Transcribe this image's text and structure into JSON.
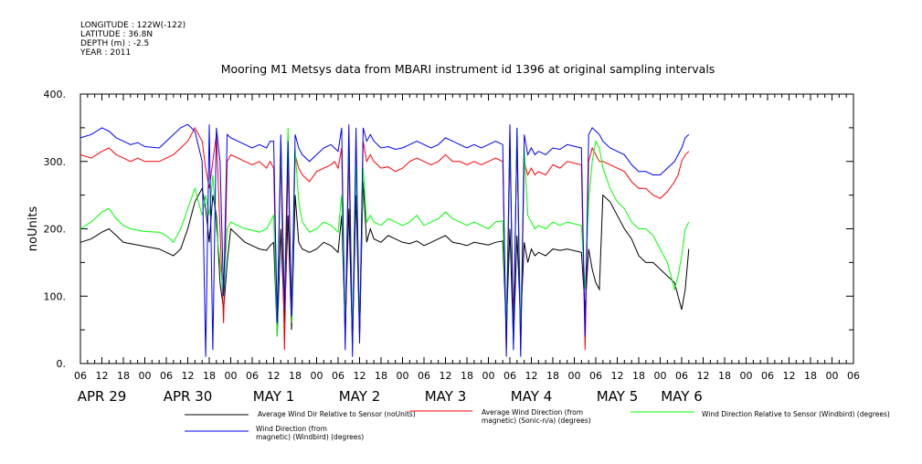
{
  "header": {
    "meta_lines": [
      "LONGITUDE : 122W(-122)",
      "LATITUDE : 36.8N",
      "DEPTH (m) : -2.5",
      "YEAR : 2011"
    ],
    "title": "Mooring M1 Metsys data from MBARI instrument id 1396 at original sampling intervals"
  },
  "legend": {
    "items": [
      {
        "lines": [
          "Average Wind Dir Relative to Sensor (noUnits)"
        ],
        "color": "#000000"
      },
      {
        "lines": [
          "Average Wind Direction (from",
          "magnetic) (Sonic-n/a) (degrees)"
        ],
        "color": "#ff0000"
      },
      {
        "lines": [
          "Wind Direction Relative to Sensor (Windbird) (degrees)"
        ],
        "color": "#00ff00"
      },
      {
        "lines": [
          "Wind Direction (from",
          "magnetic) (Windbird) (degrees)"
        ],
        "color": "#0000ff"
      }
    ]
  },
  "chart_data": {
    "type": "line",
    "title": "Mooring M1 Metsys data from MBARI instrument id 1396 at original sampling intervals",
    "xlabel": "",
    "ylabel": "noUnits",
    "ylim": [
      0,
      400
    ],
    "xlim_hours": [
      0,
      210
    ],
    "y_ticks": [
      0,
      100,
      200,
      300,
      400
    ],
    "y_tick_labels": [
      "0.",
      "100.",
      "200.",
      "300.",
      "400."
    ],
    "x_tick_labels": [
      "06",
      "12",
      "18",
      "00",
      "06",
      "12",
      "18",
      "00",
      "06",
      "12",
      "18",
      "00",
      "06",
      "12",
      "18",
      "00",
      "06",
      "12",
      "18",
      "00",
      "06",
      "12",
      "18",
      "00",
      "06",
      "12",
      "18",
      "00",
      "06",
      "12",
      "18",
      "00",
      "06",
      "12",
      "18",
      "00",
      "06"
    ],
    "x_tick_hours": [
      0,
      6,
      12,
      18,
      24,
      30,
      36,
      42,
      48,
      54,
      60,
      66,
      72,
      78,
      84,
      90,
      96,
      102,
      108,
      114,
      120,
      126,
      132,
      138,
      144,
      150,
      156,
      162,
      168,
      174,
      180,
      186,
      192,
      198,
      204,
      210,
      216
    ],
    "date_labels": [
      {
        "label": "APR 29",
        "hour": 6
      },
      {
        "label": "APR 30",
        "hour": 30
      },
      {
        "label": "MAY  1",
        "hour": 54
      },
      {
        "label": "MAY  2",
        "hour": 78
      },
      {
        "label": "MAY  3",
        "hour": 102
      },
      {
        "label": "MAY  4",
        "hour": 126
      },
      {
        "label": "MAY  5",
        "hour": 150
      },
      {
        "label": "MAY  6",
        "hour": 168
      }
    ],
    "series": [
      {
        "name": "Average Wind Dir Relative to Sensor (noUnits)",
        "color": "#000000",
        "x": [
          0,
          3,
          6,
          8,
          10,
          12,
          14,
          16,
          18,
          22,
          24,
          26,
          28,
          30,
          32,
          34,
          35,
          36,
          37,
          38,
          39,
          40,
          41,
          42,
          44,
          46,
          48,
          50,
          52,
          53,
          54,
          55,
          56,
          57,
          58,
          59,
          60,
          61,
          62,
          64,
          66,
          68,
          70,
          71,
          72,
          73,
          74,
          75,
          76,
          77,
          78,
          79,
          80,
          81,
          82,
          84,
          86,
          88,
          90,
          92,
          94,
          96,
          98,
          100,
          102,
          104,
          106,
          108,
          110,
          112,
          114,
          116,
          118,
          119,
          120,
          121,
          122,
          123,
          124,
          125,
          126,
          127,
          128,
          130,
          132,
          134,
          136,
          140,
          141,
          142,
          143,
          144,
          145,
          146,
          148,
          150,
          152,
          154,
          156,
          158,
          160,
          162,
          164,
          166,
          167,
          168,
          169,
          170
        ],
        "y": [
          180,
          185,
          195,
          200,
          190,
          180,
          178,
          176,
          174,
          170,
          165,
          160,
          170,
          200,
          240,
          260,
          230,
          180,
          250,
          220,
          120,
          80,
          150,
          200,
          190,
          180,
          175,
          170,
          168,
          175,
          180,
          40,
          200,
          60,
          220,
          50,
          250,
          180,
          170,
          165,
          170,
          180,
          175,
          170,
          165,
          220,
          50,
          230,
          30,
          250,
          40,
          270,
          180,
          200,
          185,
          180,
          190,
          185,
          180,
          178,
          182,
          175,
          180,
          185,
          190,
          180,
          178,
          175,
          180,
          178,
          176,
          180,
          182,
          50,
          200,
          30,
          190,
          60,
          180,
          150,
          170,
          160,
          165,
          160,
          170,
          168,
          170,
          165,
          80,
          170,
          140,
          120,
          110,
          250,
          240,
          220,
          200,
          185,
          160,
          150,
          150,
          140,
          130,
          120,
          100,
          80,
          110,
          170
        ]
      },
      {
        "name": "Average Wind Direction (from magnetic) (Sonic-n/a) (degrees)",
        "color": "#ff0000",
        "x": [
          0,
          3,
          6,
          8,
          10,
          12,
          14,
          16,
          18,
          22,
          24,
          26,
          28,
          30,
          32,
          34,
          35,
          36,
          37,
          38,
          39,
          40,
          41,
          42,
          44,
          46,
          48,
          50,
          52,
          53,
          54,
          55,
          56,
          57,
          58,
          59,
          60,
          61,
          62,
          64,
          66,
          68,
          70,
          71,
          72,
          73,
          74,
          75,
          76,
          77,
          78,
          79,
          80,
          81,
          82,
          84,
          86,
          88,
          90,
          92,
          94,
          96,
          98,
          100,
          102,
          104,
          106,
          108,
          110,
          112,
          114,
          116,
          118,
          119,
          120,
          121,
          122,
          123,
          124,
          125,
          126,
          127,
          128,
          130,
          132,
          134,
          136,
          140,
          141,
          142,
          143,
          144,
          145,
          146,
          148,
          150,
          152,
          154,
          156,
          158,
          160,
          162,
          164,
          166,
          167,
          168,
          169,
          170
        ],
        "y": [
          310,
          305,
          315,
          320,
          310,
          305,
          300,
          305,
          300,
          300,
          305,
          310,
          320,
          330,
          350,
          330,
          290,
          260,
          300,
          340,
          200,
          60,
          300,
          310,
          305,
          300,
          295,
          300,
          290,
          300,
          290,
          60,
          310,
          20,
          300,
          60,
          310,
          290,
          280,
          270,
          285,
          290,
          295,
          300,
          290,
          320,
          30,
          310,
          30,
          320,
          40,
          330,
          300,
          310,
          300,
          290,
          292,
          285,
          290,
          300,
          305,
          300,
          295,
          300,
          310,
          300,
          300,
          295,
          300,
          295,
          300,
          305,
          300,
          20,
          320,
          60,
          330,
          20,
          300,
          280,
          290,
          280,
          285,
          280,
          295,
          290,
          300,
          295,
          20,
          300,
          320,
          310,
          300,
          300,
          295,
          290,
          285,
          270,
          260,
          260,
          250,
          245,
          255,
          270,
          280,
          300,
          310,
          315
        ]
      },
      {
        "name": "Wind Direction Relative to Sensor (Windbird) (degrees)",
        "color": "#00ff00",
        "x": [
          0,
          3,
          6,
          8,
          10,
          12,
          14,
          16,
          18,
          22,
          24,
          26,
          28,
          30,
          32,
          34,
          35,
          36,
          37,
          38,
          39,
          40,
          41,
          42,
          44,
          46,
          48,
          50,
          52,
          53,
          54,
          55,
          56,
          57,
          58,
          59,
          60,
          61,
          62,
          64,
          66,
          68,
          70,
          71,
          72,
          73,
          74,
          75,
          76,
          77,
          78,
          79,
          80,
          81,
          82,
          84,
          86,
          88,
          90,
          92,
          94,
          96,
          98,
          100,
          102,
          104,
          106,
          108,
          110,
          112,
          114,
          116,
          118,
          119,
          120,
          121,
          122,
          123,
          124,
          125,
          126,
          127,
          128,
          130,
          132,
          134,
          136,
          140,
          141,
          142,
          143,
          144,
          145,
          146,
          148,
          150,
          152,
          154,
          156,
          158,
          160,
          162,
          164,
          166,
          167,
          168,
          169,
          170
        ],
        "y": [
          200,
          210,
          225,
          230,
          215,
          205,
          200,
          198,
          196,
          195,
          190,
          180,
          200,
          230,
          260,
          220,
          250,
          220,
          280,
          200,
          150,
          100,
          200,
          210,
          205,
          200,
          198,
          195,
          200,
          210,
          220,
          40,
          330,
          80,
          350,
          60,
          320,
          240,
          210,
          195,
          200,
          210,
          205,
          200,
          195,
          250,
          60,
          340,
          40,
          300,
          60,
          290,
          210,
          220,
          210,
          205,
          215,
          210,
          205,
          210,
          220,
          205,
          210,
          215,
          225,
          215,
          210,
          205,
          210,
          205,
          200,
          210,
          212,
          60,
          340,
          20,
          350,
          40,
          320,
          220,
          210,
          200,
          205,
          200,
          210,
          205,
          210,
          205,
          110,
          240,
          300,
          330,
          320,
          290,
          260,
          240,
          230,
          210,
          200,
          200,
          190,
          170,
          150,
          110,
          130,
          160,
          200,
          210
        ]
      },
      {
        "name": "Wind Direction (from magnetic) (Windbird) (degrees)",
        "color": "#0000ff",
        "x": [
          0,
          3,
          6,
          8,
          10,
          12,
          14,
          16,
          18,
          22,
          24,
          26,
          28,
          30,
          32,
          34,
          35,
          36,
          37,
          38,
          39,
          40,
          41,
          42,
          44,
          46,
          48,
          50,
          52,
          53,
          54,
          55,
          56,
          57,
          58,
          59,
          60,
          61,
          62,
          64,
          66,
          68,
          70,
          71,
          72,
          73,
          74,
          75,
          76,
          77,
          78,
          79,
          80,
          81,
          82,
          84,
          86,
          88,
          90,
          92,
          94,
          96,
          98,
          100,
          102,
          104,
          106,
          108,
          110,
          112,
          114,
          116,
          118,
          119,
          120,
          121,
          122,
          123,
          124,
          125,
          126,
          127,
          128,
          130,
          132,
          134,
          136,
          140,
          141,
          142,
          143,
          144,
          145,
          146,
          148,
          150,
          152,
          154,
          156,
          158,
          160,
          162,
          164,
          166,
          167,
          168,
          169,
          170
        ],
        "y": [
          335,
          340,
          350,
          345,
          335,
          330,
          325,
          328,
          322,
          320,
          330,
          340,
          350,
          355,
          345,
          300,
          10,
          355,
          20,
          350,
          300,
          100,
          340,
          335,
          330,
          325,
          320,
          325,
          320,
          330,
          330,
          60,
          340,
          80,
          330,
          70,
          340,
          320,
          310,
          300,
          310,
          320,
          325,
          320,
          315,
          350,
          20,
          355,
          10,
          350,
          30,
          350,
          330,
          340,
          330,
          320,
          322,
          318,
          320,
          325,
          330,
          325,
          320,
          325,
          335,
          330,
          325,
          320,
          325,
          320,
          325,
          330,
          325,
          10,
          355,
          20,
          350,
          10,
          340,
          310,
          320,
          310,
          315,
          310,
          320,
          318,
          325,
          320,
          40,
          340,
          350,
          345,
          340,
          330,
          320,
          315,
          310,
          295,
          285,
          285,
          280,
          280,
          290,
          300,
          310,
          320,
          335,
          340
        ]
      }
    ]
  }
}
